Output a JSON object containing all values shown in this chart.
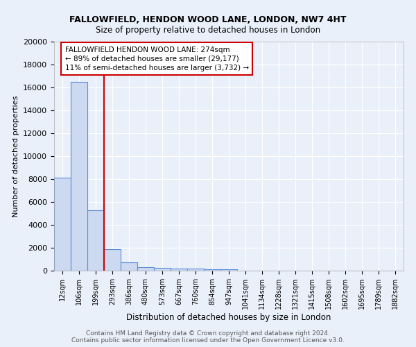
{
  "title1": "FALLOWFIELD, HENDON WOOD LANE, LONDON, NW7 4HT",
  "title2": "Size of property relative to detached houses in London",
  "xlabel": "Distribution of detached houses by size in London",
  "ylabel": "Number of detached properties",
  "bar_color": "#ccd9f0",
  "bar_edge_color": "#5b8dd9",
  "vline_color": "#cc0000",
  "vline_position": 2.5,
  "categories": [
    "12sqm",
    "106sqm",
    "199sqm",
    "293sqm",
    "386sqm",
    "480sqm",
    "573sqm",
    "667sqm",
    "760sqm",
    "854sqm",
    "947sqm",
    "1041sqm",
    "1134sqm",
    "1228sqm",
    "1321sqm",
    "1415sqm",
    "1508sqm",
    "1602sqm",
    "1695sqm",
    "1789sqm",
    "1882sqm"
  ],
  "values": [
    8100,
    16500,
    5300,
    1850,
    700,
    310,
    220,
    190,
    160,
    130,
    100,
    0,
    0,
    0,
    0,
    0,
    0,
    0,
    0,
    0,
    0
  ],
  "annotation_text": "FALLOWFIELD HENDON WOOD LANE: 274sqm\n← 89% of detached houses are smaller (29,177)\n11% of semi-detached houses are larger (3,732) →",
  "footer": "Contains HM Land Registry data © Crown copyright and database right 2024.\nContains public sector information licensed under the Open Government Licence v3.0.",
  "ylim": [
    0,
    20000
  ],
  "yticks": [
    0,
    2000,
    4000,
    6000,
    8000,
    10000,
    12000,
    14000,
    16000,
    18000,
    20000
  ],
  "background_color": "#eaf0fa",
  "grid_color": "#ffffff",
  "title1_fontsize": 9,
  "title2_fontsize": 8.5,
  "ylabel_fontsize": 8,
  "xlabel_fontsize": 8.5,
  "tick_fontsize": 7,
  "footer_fontsize": 6.5,
  "ann_fontsize": 7.5
}
